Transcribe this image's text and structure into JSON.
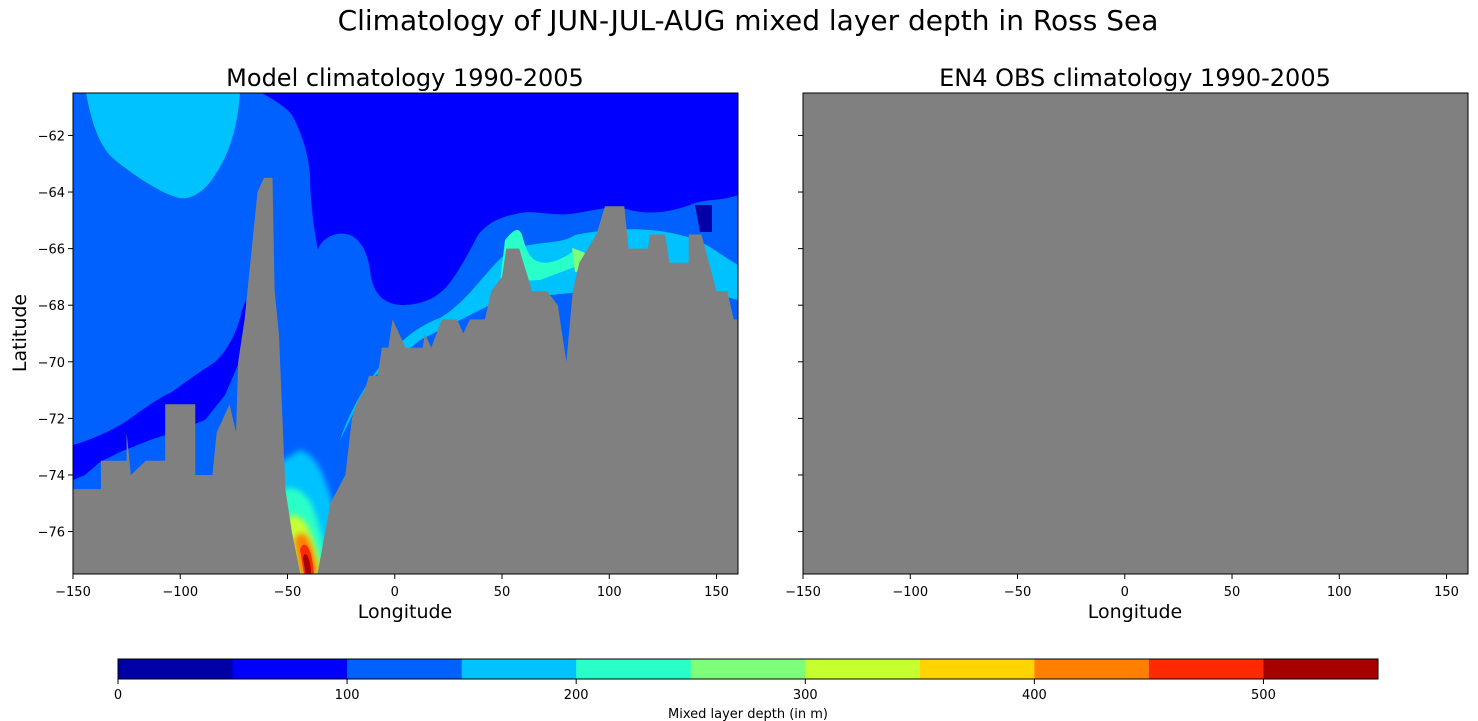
{
  "suptitle": "Climatology of JUN-JUL-AUG mixed layer depth in Ross Sea",
  "chart_data": [
    {
      "type": "heatmap",
      "panel": "left",
      "title": "Model climatology 1990-2005",
      "xlabel": "Longitude",
      "ylabel": "Latitude",
      "xlim": [
        -150,
        160
      ],
      "ylim": [
        -77.5,
        -60.5
      ],
      "xticks": [
        -150,
        -100,
        -50,
        0,
        50,
        100,
        150
      ],
      "yticks": [
        -62,
        -64,
        -66,
        -68,
        -70,
        -72,
        -74,
        -76
      ],
      "land_mask": [
        [
          -150,
          -77.5
        ],
        [
          -150,
          -74.5
        ],
        [
          -137,
          -74.5
        ],
        [
          -137,
          -73.5
        ],
        [
          -125,
          -73.5
        ],
        [
          -125,
          -72.5
        ],
        [
          -123,
          -74
        ],
        [
          -116,
          -73.5
        ],
        [
          -107,
          -73.5
        ],
        [
          -107,
          -71.5
        ],
        [
          -93,
          -71.5
        ],
        [
          -93,
          -74
        ],
        [
          -85,
          -74
        ],
        [
          -83,
          -72.5
        ],
        [
          -77,
          -71.5
        ],
        [
          -74,
          -72.5
        ],
        [
          -73,
          -70
        ],
        [
          -70,
          -68.5
        ],
        [
          -68,
          -67
        ],
        [
          -64,
          -64
        ],
        [
          -61,
          -63.5
        ],
        [
          -57,
          -63.5
        ],
        [
          -56,
          -67.5
        ],
        [
          -54,
          -69
        ],
        [
          -51,
          -74.5
        ],
        [
          -48,
          -76
        ],
        [
          -44,
          -77.5
        ],
        [
          -36,
          -77.5
        ],
        [
          -30,
          -75
        ],
        [
          -23,
          -74
        ],
        [
          -20,
          -72
        ],
        [
          -18,
          -71.5
        ],
        [
          -14,
          -71
        ],
        [
          -12,
          -70.5
        ],
        [
          -8,
          -70.5
        ],
        [
          -6,
          -69.5
        ],
        [
          -3,
          -69.5
        ],
        [
          -1,
          -68.5
        ],
        [
          5,
          -69.5
        ],
        [
          13,
          -69.5
        ],
        [
          14,
          -69
        ],
        [
          17,
          -69.5
        ],
        [
          22,
          -68.5
        ],
        [
          29,
          -68.5
        ],
        [
          32,
          -69
        ],
        [
          35,
          -68.5
        ],
        [
          42,
          -68.5
        ],
        [
          45,
          -67.5
        ],
        [
          50,
          -67
        ],
        [
          52,
          -66
        ],
        [
          58,
          -66
        ],
        [
          64,
          -67.5
        ],
        [
          71,
          -67.5
        ],
        [
          76,
          -68
        ],
        [
          80,
          -70
        ],
        [
          83,
          -67.5
        ],
        [
          86,
          -66.5
        ],
        [
          90,
          -66
        ],
        [
          94,
          -65.5
        ],
        [
          98,
          -64.5
        ],
        [
          107,
          -64.5
        ],
        [
          109,
          -66
        ],
        [
          118,
          -66
        ],
        [
          119,
          -65.5
        ],
        [
          126,
          -65.5
        ],
        [
          128,
          -66.5
        ],
        [
          137,
          -66.5
        ],
        [
          137,
          -65.5
        ],
        [
          143,
          -65.5
        ],
        [
          150,
          -67.5
        ],
        [
          155,
          -67.5
        ],
        [
          158,
          -68.5
        ],
        [
          160,
          -68.5
        ],
        [
          160,
          -77.5
        ]
      ]
    },
    {
      "type": "heatmap",
      "panel": "right",
      "title": "EN4 OBS climatology 1990-2005",
      "xlabel": "Longitude",
      "xlim": [
        -150,
        160
      ],
      "ylim": [
        -77.5,
        -60.5
      ],
      "xticks": [
        -150,
        -100,
        -50,
        0,
        50,
        100,
        150
      ],
      "yticks": [
        -62,
        -64,
        -66,
        -68,
        -70,
        -72,
        -74,
        -76
      ],
      "fill": "no data (entire panel masked)"
    }
  ],
  "colorbar": {
    "label": "Mixed layer depth (in m)",
    "levels": [
      0,
      50,
      100,
      150,
      200,
      250,
      300,
      350,
      400,
      450,
      500,
      550
    ],
    "tick_labels": [
      "0",
      "100",
      "200",
      "300",
      "400",
      "500"
    ],
    "tick_values": [
      0,
      100,
      200,
      300,
      400,
      500
    ],
    "colors": [
      "#0000a6",
      "#0000ff",
      "#0061ff",
      "#00c2ff",
      "#29ffc8",
      "#7dff7a",
      "#c6ff30",
      "#ffd400",
      "#ff7f00",
      "#ff2900",
      "#a60000"
    ]
  },
  "colors": {
    "land": "#808080",
    "axes": "#000000"
  }
}
